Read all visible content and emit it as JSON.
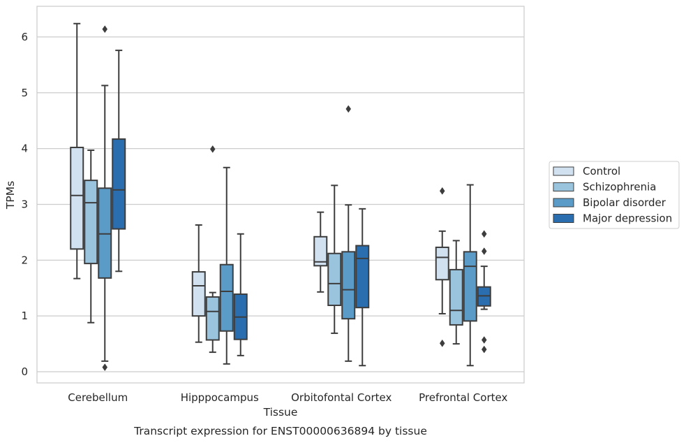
{
  "chart_data": {
    "type": "boxplot",
    "caption": "Transcript expression for ENST00000636894 by tissue",
    "xlabel": "Tissue",
    "ylabel": "TPMs",
    "ylim": [
      -0.2,
      6.55
    ],
    "yticks": [
      0,
      1,
      2,
      3,
      4,
      5,
      6
    ],
    "grid": true,
    "legend_position": "right",
    "categories": [
      "Cerebellum",
      "Hipppocampus",
      "Orbitofontal Cortex",
      "Prefrontal Cortex"
    ],
    "series": [
      {
        "name": "Control",
        "color": "#d1e1f0",
        "boxes": [
          {
            "whisker_low": 1.67,
            "q1": 2.2,
            "median": 3.16,
            "q3": 4.02,
            "whisker_high": 6.24,
            "outliers": []
          },
          {
            "whisker_low": 0.53,
            "q1": 1.0,
            "median": 1.54,
            "q3": 1.79,
            "whisker_high": 2.63,
            "outliers": []
          },
          {
            "whisker_low": 1.43,
            "q1": 1.9,
            "median": 1.97,
            "q3": 2.42,
            "whisker_high": 2.86,
            "outliers": []
          },
          {
            "whisker_low": 1.04,
            "q1": 1.65,
            "median": 2.05,
            "q3": 2.23,
            "whisker_high": 2.52,
            "outliers": [
              3.24,
              0.51
            ]
          }
        ]
      },
      {
        "name": "Schizophrenia",
        "color": "#9ac3de",
        "boxes": [
          {
            "whisker_low": 0.88,
            "q1": 1.94,
            "median": 3.03,
            "q3": 3.43,
            "whisker_high": 3.97,
            "outliers": []
          },
          {
            "whisker_low": 0.35,
            "q1": 0.57,
            "median": 1.08,
            "q3": 1.34,
            "whisker_high": 1.42,
            "outliers": [
              3.99
            ]
          },
          {
            "whisker_low": 0.69,
            "q1": 1.19,
            "median": 1.58,
            "q3": 2.12,
            "whisker_high": 3.34,
            "outliers": []
          },
          {
            "whisker_low": 0.5,
            "q1": 0.84,
            "median": 1.1,
            "q3": 1.83,
            "whisker_high": 2.35,
            "outliers": []
          }
        ]
      },
      {
        "name": "Bipolar disorder",
        "color": "#5b9bc8",
        "boxes": [
          {
            "whisker_low": 0.19,
            "q1": 1.68,
            "median": 2.47,
            "q3": 3.29,
            "whisker_high": 5.13,
            "outliers": [
              6.14,
              0.08
            ]
          },
          {
            "whisker_low": 0.14,
            "q1": 0.73,
            "median": 1.44,
            "q3": 1.92,
            "whisker_high": 3.66,
            "outliers": []
          },
          {
            "whisker_low": 0.19,
            "q1": 0.95,
            "median": 1.47,
            "q3": 2.15,
            "whisker_high": 2.99,
            "outliers": [
              4.71
            ]
          },
          {
            "whisker_low": 0.11,
            "q1": 0.91,
            "median": 1.89,
            "q3": 2.15,
            "whisker_high": 3.35,
            "outliers": []
          }
        ]
      },
      {
        "name": "Major depression",
        "color": "#2a6eb0",
        "boxes": [
          {
            "whisker_low": 1.8,
            "q1": 2.56,
            "median": 3.26,
            "q3": 4.17,
            "whisker_high": 5.76,
            "outliers": []
          },
          {
            "whisker_low": 0.29,
            "q1": 0.58,
            "median": 0.98,
            "q3": 1.39,
            "whisker_high": 2.47,
            "outliers": []
          },
          {
            "whisker_low": 0.11,
            "q1": 1.15,
            "median": 2.03,
            "q3": 2.26,
            "whisker_high": 2.92,
            "outliers": []
          },
          {
            "whisker_low": 1.12,
            "q1": 1.18,
            "median": 1.36,
            "q3": 1.52,
            "whisker_high": 1.89,
            "outliers": [
              2.47,
              2.16,
              0.57,
              0.4
            ]
          }
        ]
      }
    ]
  }
}
